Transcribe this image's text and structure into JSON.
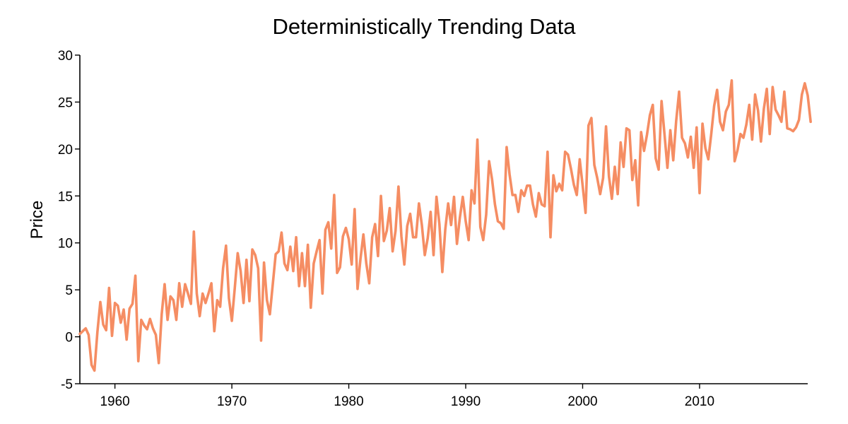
{
  "chart_data": {
    "type": "line",
    "title": "Deterministically Trending Data",
    "xlabel": "",
    "ylabel": "Price",
    "xlim": [
      1957.0,
      2019.25
    ],
    "ylim": [
      -5,
      30
    ],
    "x_ticks": [
      1960,
      1970,
      1980,
      1990,
      2000,
      2010
    ],
    "x_tick_labels": [
      "1960",
      "1970",
      "1980",
      "1990",
      "2000",
      "2010"
    ],
    "y_ticks": [
      -5,
      0,
      5,
      10,
      15,
      20,
      25,
      30
    ],
    "y_tick_labels": [
      "-5",
      "0",
      "5",
      "10",
      "15",
      "20",
      "25",
      "30"
    ],
    "grid": false,
    "colors": {
      "line": "#f58d63",
      "axis": "#000000"
    },
    "series": [
      {
        "name": "Price",
        "x_start": 1957.0,
        "x_step": 0.25,
        "values": [
          0.3,
          0.6,
          0.9,
          0.2,
          -3.0,
          -3.6,
          0.5,
          3.7,
          1.3,
          0.7,
          5.2,
          0.1,
          3.6,
          3.3,
          1.5,
          2.9,
          -0.3,
          3.0,
          3.5,
          6.5,
          -2.6,
          1.8,
          1.2,
          0.8,
          1.9,
          0.9,
          0.2,
          -2.8,
          2.4,
          5.6,
          1.8,
          4.3,
          3.9,
          1.8,
          5.7,
          3.2,
          5.6,
          4.6,
          3.5,
          11.2,
          4.6,
          2.2,
          4.6,
          3.6,
          4.6,
          5.7,
          0.6,
          3.9,
          3.2,
          7.3,
          9.7,
          4.1,
          1.7,
          5.2,
          8.9,
          7.0,
          3.6,
          8.2,
          3.8,
          9.3,
          8.7,
          7.3,
          -0.4,
          7.9,
          3.9,
          2.4,
          5.6,
          8.8,
          9.1,
          11.1,
          7.8,
          7.1,
          9.6,
          7.0,
          10.6,
          5.4,
          8.9,
          5.4,
          9.8,
          3.1,
          7.8,
          9.1,
          10.3,
          4.6,
          11.4,
          12.2,
          9.4,
          15.1,
          6.8,
          7.4,
          10.7,
          11.6,
          10.4,
          7.7,
          13.6,
          5.1,
          8.3,
          10.9,
          7.8,
          5.7,
          10.6,
          12.0,
          8.6,
          15.0,
          10.2,
          11.3,
          13.7,
          9.1,
          11.3,
          16.0,
          10.7,
          7.7,
          11.8,
          13.1,
          10.6,
          10.6,
          14.2,
          11.9,
          8.7,
          10.5,
          13.3,
          8.7,
          14.9,
          12.0,
          6.9,
          11.4,
          14.2,
          11.9,
          14.9,
          9.9,
          12.7,
          14.9,
          12.3,
          10.3,
          15.6,
          14.2,
          21.0,
          11.7,
          10.3,
          13.0,
          18.7,
          16.8,
          14.1,
          12.3,
          12.1,
          11.5,
          20.2,
          17.3,
          15.1,
          15.1,
          13.3,
          15.6,
          15.0,
          16.1,
          16.1,
          14.1,
          12.8,
          15.3,
          14.1,
          13.9,
          19.7,
          10.6,
          17.2,
          15.5,
          16.3,
          15.6,
          19.7,
          19.4,
          17.9,
          16.2,
          15.1,
          18.9,
          16.1,
          13.2,
          22.5,
          23.3,
          18.3,
          16.9,
          15.2,
          16.9,
          22.4,
          17.1,
          14.7,
          18.1,
          15.2,
          20.7,
          18.1,
          22.2,
          22.0,
          16.7,
          18.8,
          14.0,
          21.8,
          19.8,
          21.5,
          23.6,
          24.7,
          19.0,
          17.8,
          25.1,
          21.6,
          18.0,
          22.0,
          18.8,
          23.0,
          26.1,
          21.2,
          20.6,
          19.1,
          21.3,
          18.0,
          22.3,
          15.3,
          22.7,
          20.1,
          18.9,
          21.6,
          24.6,
          26.3,
          22.9,
          22.0,
          24.0,
          24.7,
          27.3,
          18.7,
          19.9,
          21.6,
          21.2,
          22.6,
          24.7,
          21.0,
          25.8,
          24.1,
          20.8,
          24.3,
          26.4,
          21.6,
          26.6,
          24.2,
          23.6,
          22.9,
          26.1,
          22.2,
          22.1,
          21.9,
          22.3,
          23.1,
          25.8,
          27.0,
          25.7,
          22.9
        ]
      }
    ]
  }
}
